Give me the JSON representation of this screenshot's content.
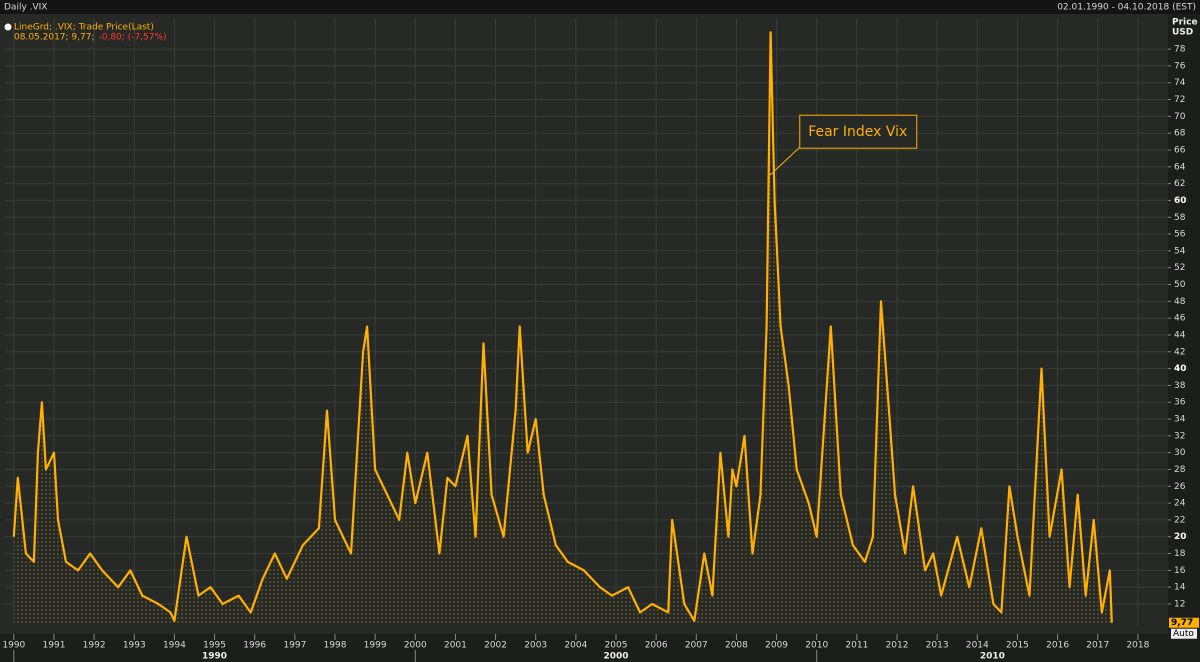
{
  "chart_data": {
    "type": "line",
    "title": "Daily .VIX",
    "date_range": "02.01.1990 - 04.10.2018 (EST)",
    "legend_line1": "LineGrd; .VIX; Trade Price(Last)",
    "legend_line2a": "08.05.2017; 9,77;",
    "legend_line2b": "-0,80; (-7,57%)",
    "y_axis_label1": "Price",
    "y_axis_label2": "USD",
    "annotation": {
      "text": "Fear Index Vix",
      "x": 2008.83,
      "y": 63
    },
    "last_price": {
      "value": 9.77,
      "label": "9,77"
    },
    "scale_mode": "Auto",
    "color": "#ffb000",
    "grid": true,
    "xlim": [
      1989.78,
      2018.75
    ],
    "ylim": [
      9.5,
      81.7
    ],
    "xticks": [
      1990,
      1991,
      1992,
      1993,
      1994,
      1995,
      1996,
      1997,
      1998,
      1999,
      2000,
      2001,
      2002,
      2003,
      2004,
      2005,
      2006,
      2007,
      2008,
      2009,
      2010,
      2011,
      2012,
      2013,
      2014,
      2015,
      2016,
      2017,
      2018
    ],
    "decades": [
      1990,
      2000,
      2010
    ],
    "yticks": [
      12,
      14,
      16,
      18,
      20,
      22,
      24,
      26,
      28,
      30,
      32,
      34,
      36,
      38,
      40,
      42,
      44,
      46,
      48,
      50,
      52,
      54,
      56,
      58,
      60,
      62,
      64,
      66,
      68,
      70,
      72,
      74,
      76,
      78
    ],
    "series": [
      {
        "name": ".VIX",
        "x": [
          1990.0,
          1990.1,
          1990.3,
          1990.5,
          1990.6,
          1990.7,
          1990.8,
          1991.0,
          1991.1,
          1991.3,
          1991.6,
          1991.9,
          1992.2,
          1992.6,
          1992.9,
          1993.2,
          1993.6,
          1993.9,
          1994.0,
          1994.3,
          1994.6,
          1994.9,
          1995.2,
          1995.6,
          1995.9,
          1996.2,
          1996.5,
          1996.8,
          1997.2,
          1997.6,
          1997.8,
          1998.0,
          1998.4,
          1998.7,
          1998.8,
          1999.0,
          1999.3,
          1999.6,
          1999.8,
          2000.0,
          2000.3,
          2000.6,
          2000.8,
          2001.0,
          2001.3,
          2001.5,
          2001.7,
          2001.9,
          2002.2,
          2002.5,
          2002.6,
          2002.8,
          2003.0,
          2003.2,
          2003.5,
          2003.8,
          2004.2,
          2004.6,
          2004.9,
          2005.3,
          2005.6,
          2005.9,
          2006.3,
          2006.4,
          2006.7,
          2006.95,
          2007.2,
          2007.4,
          2007.6,
          2007.8,
          2007.9,
          2008.0,
          2008.2,
          2008.4,
          2008.6,
          2008.75,
          2008.85,
          2008.95,
          2009.1,
          2009.3,
          2009.5,
          2009.8,
          2010.0,
          2010.35,
          2010.6,
          2010.9,
          2011.2,
          2011.4,
          2011.6,
          2011.8,
          2011.95,
          2012.2,
          2012.4,
          2012.7,
          2012.9,
          2013.1,
          2013.5,
          2013.8,
          2014.1,
          2014.4,
          2014.6,
          2014.8,
          2015.0,
          2015.3,
          2015.6,
          2015.8,
          2016.1,
          2016.3,
          2016.5,
          2016.7,
          2016.9,
          2017.1,
          2017.3,
          2017.35
        ],
        "values": [
          20,
          27,
          18,
          17,
          30,
          36,
          28,
          30,
          22,
          17,
          16,
          18,
          16,
          14,
          16,
          13,
          12,
          11,
          10,
          20,
          13,
          14,
          12,
          13,
          11,
          15,
          18,
          15,
          19,
          21,
          35,
          22,
          18,
          42,
          45,
          28,
          25,
          22,
          30,
          24,
          30,
          18,
          27,
          26,
          32,
          20,
          43,
          25,
          20,
          35,
          45,
          30,
          34,
          25,
          19,
          17,
          16,
          14,
          13,
          14,
          11,
          12,
          11,
          22,
          12,
          10,
          18,
          13,
          30,
          20,
          28,
          26,
          32,
          18,
          25,
          45,
          80,
          60,
          45,
          38,
          28,
          24,
          20,
          45,
          25,
          19,
          17,
          20,
          48,
          35,
          25,
          18,
          26,
          16,
          18,
          13,
          20,
          14,
          21,
          12,
          11,
          26,
          20,
          13,
          40,
          20,
          28,
          14,
          25,
          13,
          22,
          11,
          16,
          9.77
        ]
      }
    ]
  }
}
